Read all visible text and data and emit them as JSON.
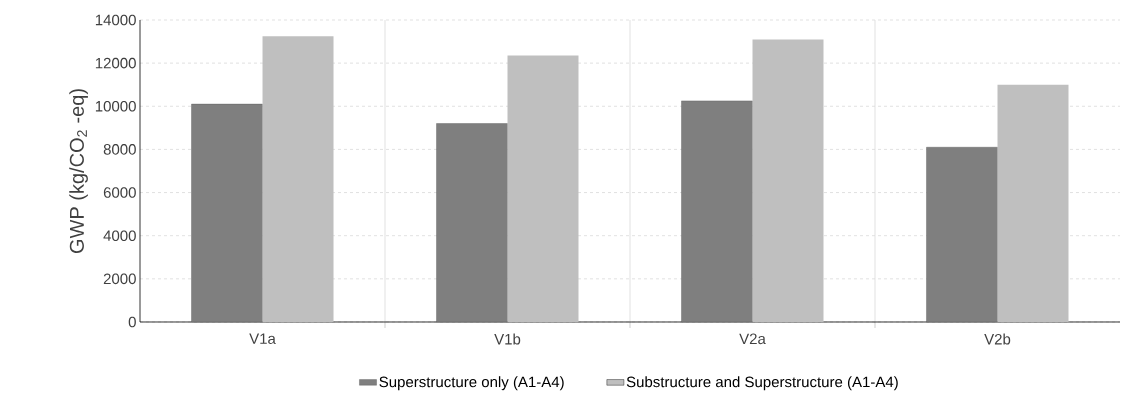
{
  "chart_data": {
    "type": "bar",
    "ylabel": "GWP (kg/CO$_{2}$ -eq)",
    "categories": [
      "V1a",
      "V1b",
      "V2a",
      "V2b"
    ],
    "series": [
      {
        "name": "Superstructure only (A1-A4)",
        "color": "#7f7f7f",
        "values": [
          10100,
          9200,
          10250,
          8100
        ]
      },
      {
        "name": "Substructure and Superstructure (A1-A4)",
        "color": "#bfbfbf",
        "values": [
          13250,
          12350,
          13100,
          11000
        ]
      }
    ],
    "ylim": [
      0,
      14000
    ],
    "yticks": [
      0,
      2000,
      4000,
      6000,
      8000,
      10000,
      12000,
      14000
    ],
    "grid": true,
    "legend": "bottom"
  }
}
